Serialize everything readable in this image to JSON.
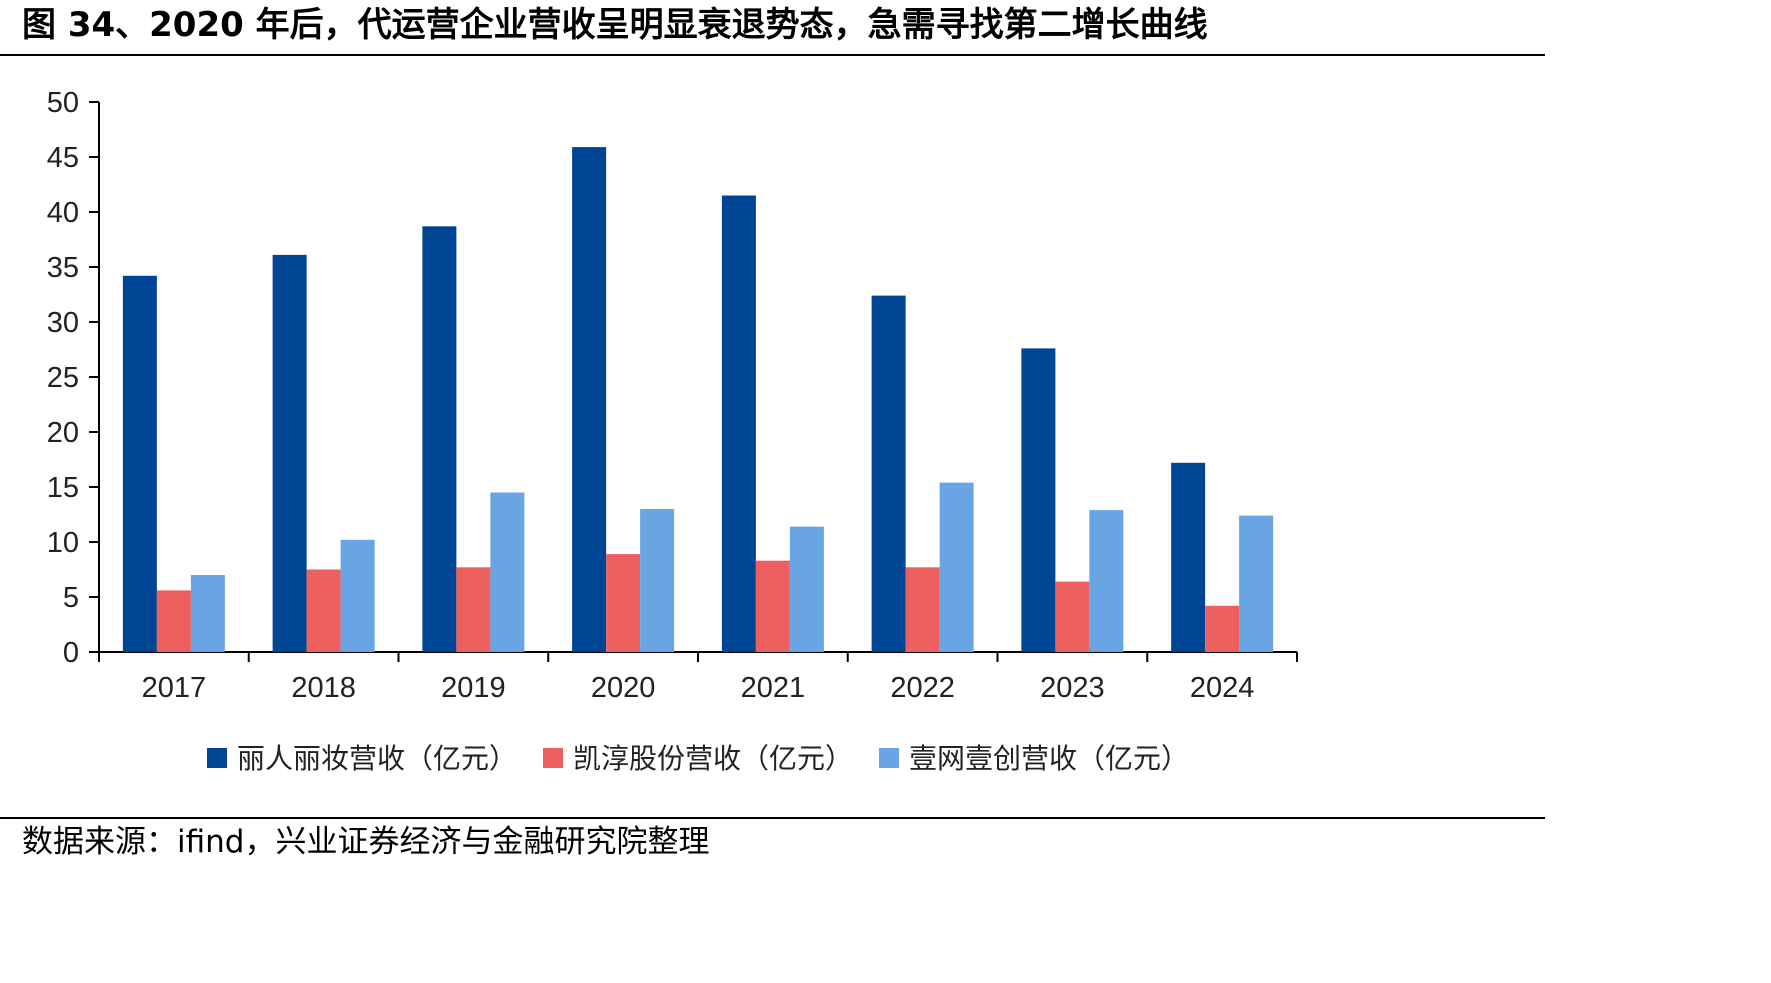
{
  "figure_title": "图 34、2020 年后，代运营企业营收呈明显衰退势态，急需寻找第二增长曲线",
  "source_note": "数据来源：ifind，兴业证券经济与金融研究院整理",
  "chart_data": {
    "type": "bar",
    "categories": [
      "2017",
      "2018",
      "2019",
      "2020",
      "2021",
      "2022",
      "2023",
      "2024"
    ],
    "series": [
      {
        "name": "丽人丽妆营收（亿元）",
        "color": "#004494",
        "values": [
          34.2,
          36.1,
          38.7,
          45.9,
          41.5,
          32.4,
          27.6,
          17.2
        ]
      },
      {
        "name": "凯淳股份营收（亿元）",
        "color": "#EE6060",
        "values": [
          5.6,
          7.5,
          7.7,
          8.9,
          8.3,
          7.7,
          6.4,
          4.2
        ]
      },
      {
        "name": "壹网壹创营收（亿元）",
        "color": "#6AA5E3",
        "values": [
          7.0,
          10.2,
          14.5,
          13.0,
          11.4,
          15.4,
          12.9,
          12.4
        ]
      }
    ],
    "ylim": [
      0,
      50
    ],
    "yticks": [
      0,
      5,
      10,
      15,
      20,
      25,
      30,
      35,
      40,
      45,
      50
    ],
    "xlabel": "",
    "ylabel": "",
    "legend_position": "bottom",
    "grid": false
  }
}
